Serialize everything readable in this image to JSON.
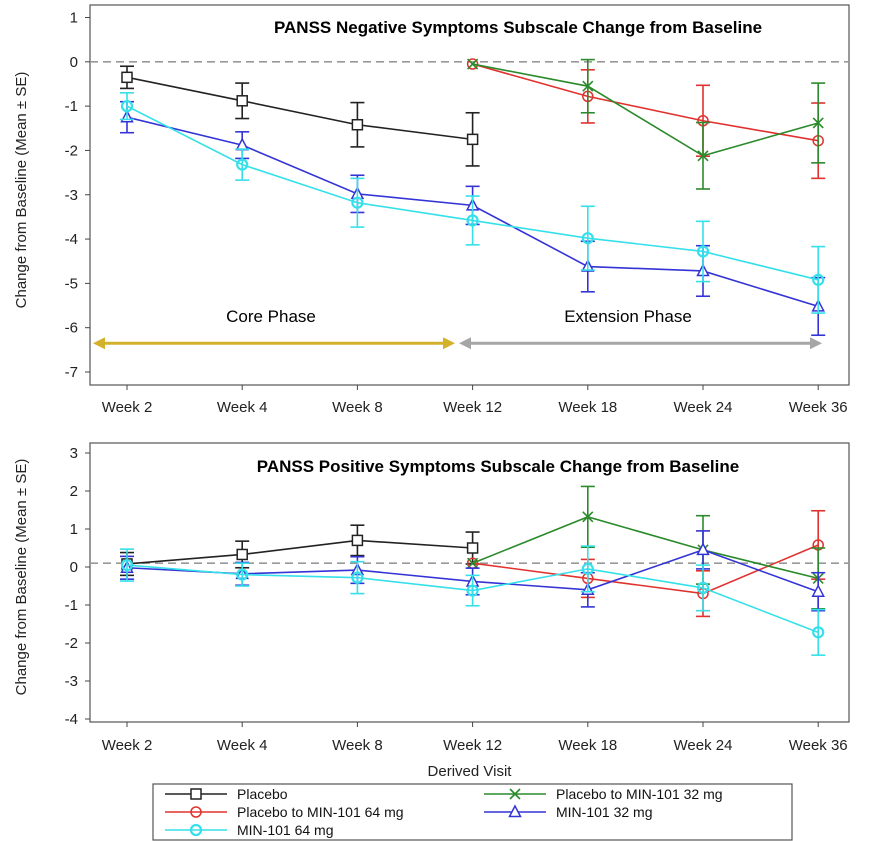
{
  "chart_data": [
    {
      "type": "line",
      "title": "PANSS Negative Symptoms Subscale Change from Baseline",
      "ylabel": "Change from Baseline (Mean ± SE)",
      "xlabel": "",
      "categories": [
        "Week 2",
        "Week 4",
        "Week 8",
        "Week 12",
        "Week 18",
        "Week 24",
        "Week 36"
      ],
      "ylim": [
        -7,
        1
      ],
      "yticks": [
        "1",
        "0",
        "-1",
        "-2",
        "-3",
        "-4",
        "-5",
        "-6",
        "-7"
      ],
      "reference_line": 0,
      "annotations": [
        {
          "text": "Core Phase",
          "from": "Week 2",
          "to": "Week 12",
          "y": -6.35,
          "color": "#d4b12a"
        },
        {
          "text": "Extension Phase",
          "from": "Week 12",
          "to": "Week 36",
          "y": -6.35,
          "color": "#a6a6a6"
        }
      ],
      "series": [
        {
          "name": "Placebo",
          "color": "#222222",
          "marker": "square",
          "x": [
            "Week 2",
            "Week 4",
            "Week 8",
            "Week 12"
          ],
          "values": [
            -0.35,
            -0.88,
            -1.42,
            -1.75
          ],
          "se": [
            0.25,
            0.4,
            0.5,
            0.6
          ]
        },
        {
          "name": "Placebo to MIN-101 64 mg",
          "color": "#e0322f",
          "marker": "circle",
          "x": [
            "Week 12",
            "Week 18",
            "Week 24",
            "Week 36"
          ],
          "values": [
            -0.05,
            -0.78,
            -1.33,
            -1.78
          ],
          "se": [
            0,
            0.6,
            0.8,
            0.85
          ]
        },
        {
          "name": "Placebo to MIN-101 32 mg",
          "color": "#2b8a2b",
          "marker": "x",
          "x": [
            "Week 12",
            "Week 18",
            "Week 24",
            "Week 36"
          ],
          "values": [
            -0.05,
            -0.55,
            -2.12,
            -1.38
          ],
          "se": [
            0,
            0.6,
            0.75,
            0.9
          ]
        },
        {
          "name": "MIN-101 32 mg",
          "color": "#3434d6",
          "marker": "triangle",
          "x": [
            "Week 2",
            "Week 4",
            "Week 8",
            "Week 12",
            "Week 18",
            "Week 24",
            "Week 36"
          ],
          "values": [
            -1.25,
            -1.88,
            -2.98,
            -3.24,
            -4.62,
            -4.72,
            -5.52
          ],
          "se": [
            0.35,
            0.3,
            0.42,
            0.43,
            0.57,
            0.57,
            0.65
          ]
        },
        {
          "name": "MIN-101 64 mg",
          "color": "#35e0ea",
          "marker": "circle-filled",
          "x": [
            "Week 2",
            "Week 4",
            "Week 8",
            "Week 12",
            "Week 18",
            "Week 24",
            "Week 36"
          ],
          "values": [
            -1.0,
            -2.32,
            -3.18,
            -3.58,
            -3.98,
            -4.28,
            -4.92
          ],
          "se": [
            0.3,
            0.35,
            0.55,
            0.55,
            0.72,
            0.68,
            0.75
          ]
        }
      ]
    },
    {
      "type": "line",
      "title": "PANSS Positive Symptoms Subscale Change from Baseline",
      "ylabel": "Change from Baseline (Mean ± SE)",
      "xlabel": "Derived Visit",
      "categories": [
        "Week 2",
        "Week 4",
        "Week 8",
        "Week 12",
        "Week 18",
        "Week 24",
        "Week 36"
      ],
      "ylim": [
        -4,
        3
      ],
      "yticks": [
        "3",
        "2",
        "1",
        "0",
        "-1",
        "-2",
        "-3",
        "-4"
      ],
      "reference_line": 0.1,
      "series": [
        {
          "name": "Placebo",
          "color": "#222222",
          "marker": "square",
          "x": [
            "Week 2",
            "Week 4",
            "Week 8",
            "Week 12"
          ],
          "values": [
            0.08,
            0.33,
            0.7,
            0.5
          ],
          "se": [
            0.3,
            0.35,
            0.4,
            0.42
          ]
        },
        {
          "name": "Placebo to MIN-101 64 mg",
          "color": "#e0322f",
          "marker": "circle",
          "x": [
            "Week 12",
            "Week 18",
            "Week 24",
            "Week 36"
          ],
          "values": [
            0.1,
            -0.3,
            -0.7,
            0.58
          ],
          "se": [
            0,
            0.5,
            0.6,
            0.9
          ]
        },
        {
          "name": "Placebo to MIN-101 32 mg",
          "color": "#2b8a2b",
          "marker": "x",
          "x": [
            "Week 12",
            "Week 18",
            "Week 24",
            "Week 36"
          ],
          "values": [
            0.1,
            1.32,
            0.45,
            -0.3
          ],
          "se": [
            0,
            0.8,
            0.9,
            0.8
          ]
        },
        {
          "name": "MIN-101 32 mg",
          "color": "#3434d6",
          "marker": "triangle",
          "x": [
            "Week 2",
            "Week 4",
            "Week 8",
            "Week 12",
            "Week 18",
            "Week 24",
            "Week 36"
          ],
          "values": [
            -0.02,
            -0.18,
            -0.08,
            -0.38,
            -0.6,
            0.45,
            -0.65
          ],
          "se": [
            0.3,
            0.3,
            0.35,
            0.35,
            0.45,
            0.5,
            0.5
          ]
        },
        {
          "name": "MIN-101 64 mg",
          "color": "#35e0ea",
          "marker": "circle-filled",
          "x": [
            "Week 2",
            "Week 4",
            "Week 8",
            "Week 12",
            "Week 18",
            "Week 24",
            "Week 36"
          ],
          "values": [
            0.05,
            -0.2,
            -0.28,
            -0.62,
            -0.05,
            -0.55,
            -1.72
          ],
          "se": [
            0.42,
            0.3,
            0.42,
            0.4,
            0.6,
            0.6,
            0.6
          ]
        }
      ]
    }
  ],
  "legend": [
    {
      "label": "Placebo",
      "color": "#222222",
      "marker": "square"
    },
    {
      "label": "Placebo to MIN-101 32 mg",
      "color": "#2b8a2b",
      "marker": "x"
    },
    {
      "label": "Placebo to MIN-101 64 mg",
      "color": "#e0322f",
      "marker": "circle"
    },
    {
      "label": "MIN-101 32 mg",
      "color": "#3434d6",
      "marker": "triangle"
    },
    {
      "label": "MIN-101 64 mg",
      "color": "#35e0ea",
      "marker": "circle-filled"
    }
  ]
}
